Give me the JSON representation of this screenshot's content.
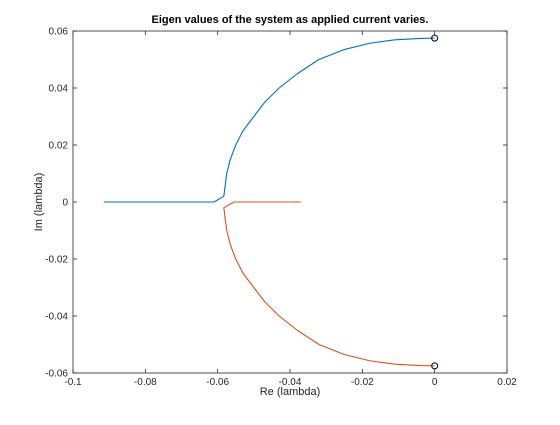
{
  "chart_data": {
    "type": "line",
    "title": "Eigen values of the system as applied current varies.",
    "xlabel": "Re (lambda)",
    "ylabel": "Im (lambda)",
    "xlim": [
      -0.1,
      0.02
    ],
    "ylim": [
      -0.06,
      0.06
    ],
    "xticks": [
      -0.1,
      -0.08,
      -0.06,
      -0.04,
      -0.02,
      0,
      0.02
    ],
    "xtick_labels": [
      "-0.1",
      "-0.08",
      "-0.06",
      "-0.04",
      "-0.02",
      "0",
      "0.02"
    ],
    "yticks": [
      -0.06,
      -0.04,
      -0.02,
      0,
      0.02,
      0.04,
      0.06
    ],
    "ytick_labels": [
      "-0.06",
      "-0.04",
      "-0.02",
      "0",
      "0.02",
      "0.04",
      "0.06"
    ],
    "grid": false,
    "series": [
      {
        "color": "#0072bd",
        "x": [
          -0.0915,
          -0.07,
          -0.061,
          -0.0583,
          -0.058,
          -0.0575,
          -0.0565,
          -0.055,
          -0.053,
          -0.05,
          -0.047,
          -0.043,
          -0.038,
          -0.032,
          -0.025,
          -0.018,
          -0.011,
          -0.004,
          0
        ],
        "y": [
          0,
          0,
          0,
          0.002,
          0.005,
          0.01,
          0.015,
          0.02,
          0.025,
          0.03,
          0.035,
          0.04,
          0.045,
          0.05,
          0.0535,
          0.0557,
          0.0569,
          0.0574,
          0.0575
        ]
      },
      {
        "color": "#d95319",
        "x": [
          -0.037,
          -0.047,
          -0.0555,
          -0.0583,
          -0.058,
          -0.0575,
          -0.0565,
          -0.055,
          -0.053,
          -0.05,
          -0.047,
          -0.043,
          -0.038,
          -0.032,
          -0.025,
          -0.018,
          -0.011,
          -0.004,
          0
        ],
        "y": [
          0,
          0,
          0,
          -0.002,
          -0.005,
          -0.01,
          -0.015,
          -0.02,
          -0.025,
          -0.03,
          -0.035,
          -0.04,
          -0.045,
          -0.05,
          -0.0535,
          -0.0557,
          -0.0569,
          -0.0574,
          -0.0575
        ]
      }
    ],
    "markers": [
      {
        "x": 0,
        "y": 0.0575
      },
      {
        "x": 0,
        "y": -0.0575
      }
    ]
  }
}
